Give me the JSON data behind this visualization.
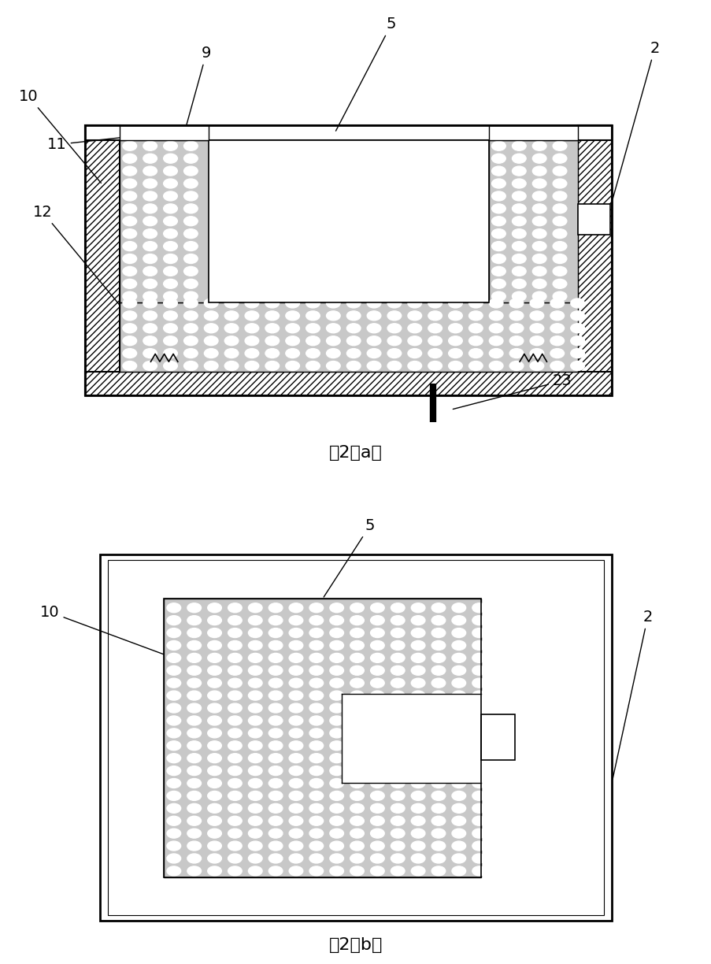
{
  "fig_width": 9.04,
  "fig_height": 12.24,
  "bg_color": "#ffffff",
  "caption_a": "图2（a）",
  "caption_b": "图2（b）",
  "font_size_label": 14,
  "font_size_caption": 16
}
